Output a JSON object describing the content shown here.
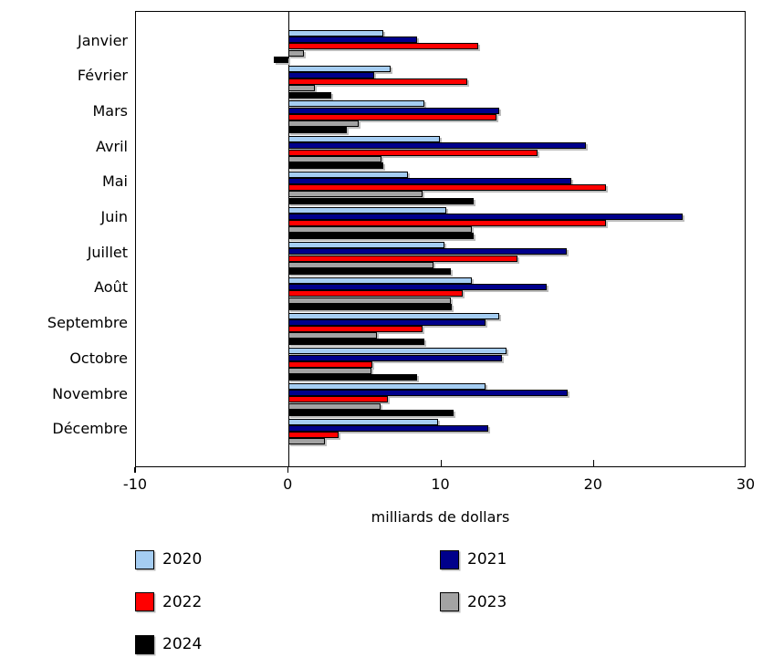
{
  "chart_data": {
    "type": "bar",
    "orientation": "horizontal",
    "title": "",
    "xlabel": "milliards de dollars",
    "ylabel": "",
    "xlim": [
      -10,
      30
    ],
    "xticks": [
      -10,
      0,
      10,
      20,
      30
    ],
    "grid": false,
    "legend_position": "bottom",
    "categories": [
      "Janvier",
      "Février",
      "Mars",
      "Avril",
      "Mai",
      "Juin",
      "Juillet",
      "Août",
      "Septembre",
      "Octobre",
      "Novembre",
      "Décembre"
    ],
    "series": [
      {
        "name": "2020",
        "color": "#a5cdf2",
        "values": [
          6.2,
          6.7,
          8.9,
          9.9,
          7.8,
          10.3,
          10.2,
          12.0,
          13.8,
          14.3,
          12.9,
          9.8
        ]
      },
      {
        "name": "2021",
        "color": "#00008b",
        "values": [
          8.4,
          5.6,
          13.8,
          19.5,
          18.5,
          25.8,
          18.2,
          16.9,
          12.9,
          14.0,
          18.3,
          13.1
        ]
      },
      {
        "name": "2022",
        "color": "#ff0000",
        "values": [
          12.4,
          11.7,
          13.6,
          16.3,
          20.8,
          20.8,
          15.0,
          11.4,
          8.8,
          5.5,
          6.5,
          3.3
        ]
      },
      {
        "name": "2023",
        "color": "#a3a3a3",
        "values": [
          1.0,
          1.7,
          4.6,
          6.1,
          8.8,
          12.0,
          9.5,
          10.6,
          5.8,
          5.4,
          6.0,
          2.4
        ]
      },
      {
        "name": "2024",
        "color": "#000000",
        "values": [
          -1.0,
          2.8,
          3.8,
          6.2,
          12.1,
          12.1,
          10.6,
          10.7,
          8.9,
          8.4,
          10.8,
          null
        ]
      }
    ]
  }
}
